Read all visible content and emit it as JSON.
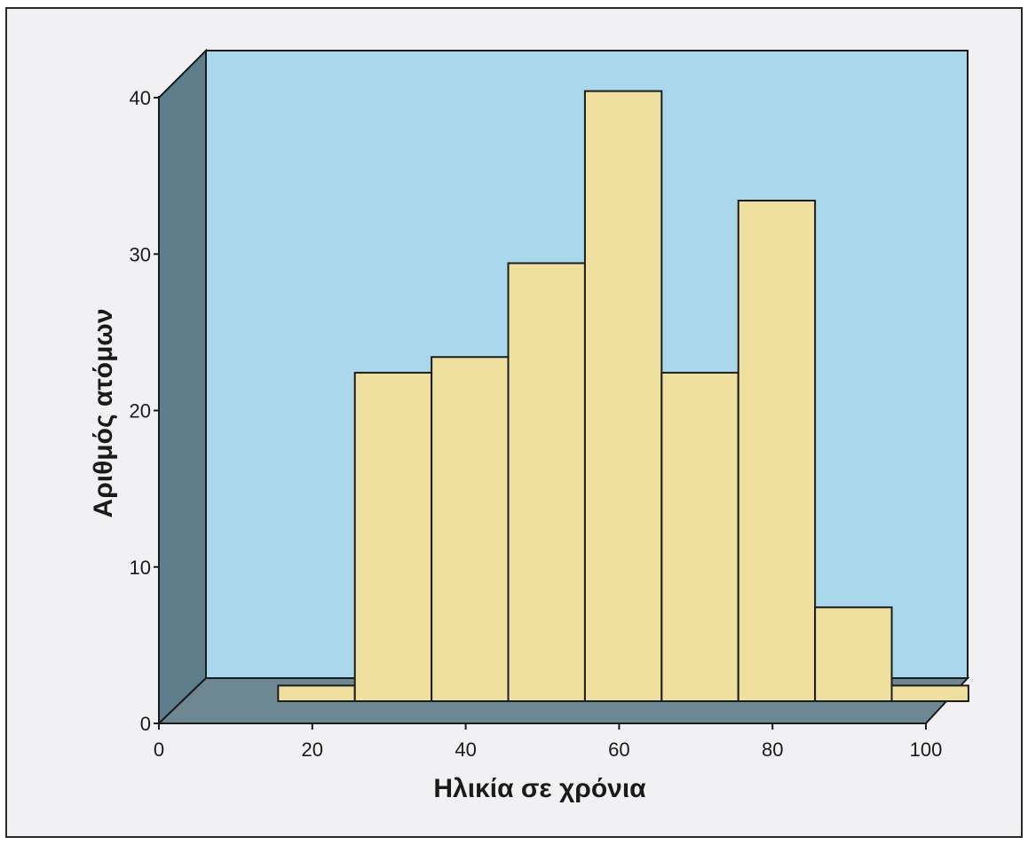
{
  "chart_data": {
    "type": "bar",
    "style": "3d-histogram",
    "title": "",
    "xlabel": "Ηλικία σε χρόνια",
    "ylabel": "Αριθμός ατόμων",
    "xlim": [
      0,
      100
    ],
    "ylim": [
      0,
      40
    ],
    "x_ticks": [
      "0",
      "20",
      "40",
      "60",
      "80",
      "100"
    ],
    "y_ticks": [
      "0",
      "10",
      "20",
      "30",
      "40"
    ],
    "bins": [
      {
        "from": 13,
        "to": 23,
        "value": 1
      },
      {
        "from": 23,
        "to": 33,
        "value": 21
      },
      {
        "from": 33,
        "to": 43,
        "value": 22
      },
      {
        "from": 43,
        "to": 53,
        "value": 28
      },
      {
        "from": 53,
        "to": 63,
        "value": 39
      },
      {
        "from": 63,
        "to": 73,
        "value": 21
      },
      {
        "from": 73,
        "to": 83,
        "value": 32
      },
      {
        "from": 83,
        "to": 93,
        "value": 6
      },
      {
        "from": 93,
        "to": 103,
        "value": 1
      }
    ],
    "grid": false,
    "legend": "none"
  },
  "colors": {
    "background": "#f1f1f3",
    "plot_back_wall": "#a9d8ec",
    "side_wall": "#5f7e8c",
    "floor": "#6d8793",
    "bar_fill": "#efe0a0",
    "bar_stroke": "#1c1c1c",
    "axis": "#1a1a1a"
  }
}
